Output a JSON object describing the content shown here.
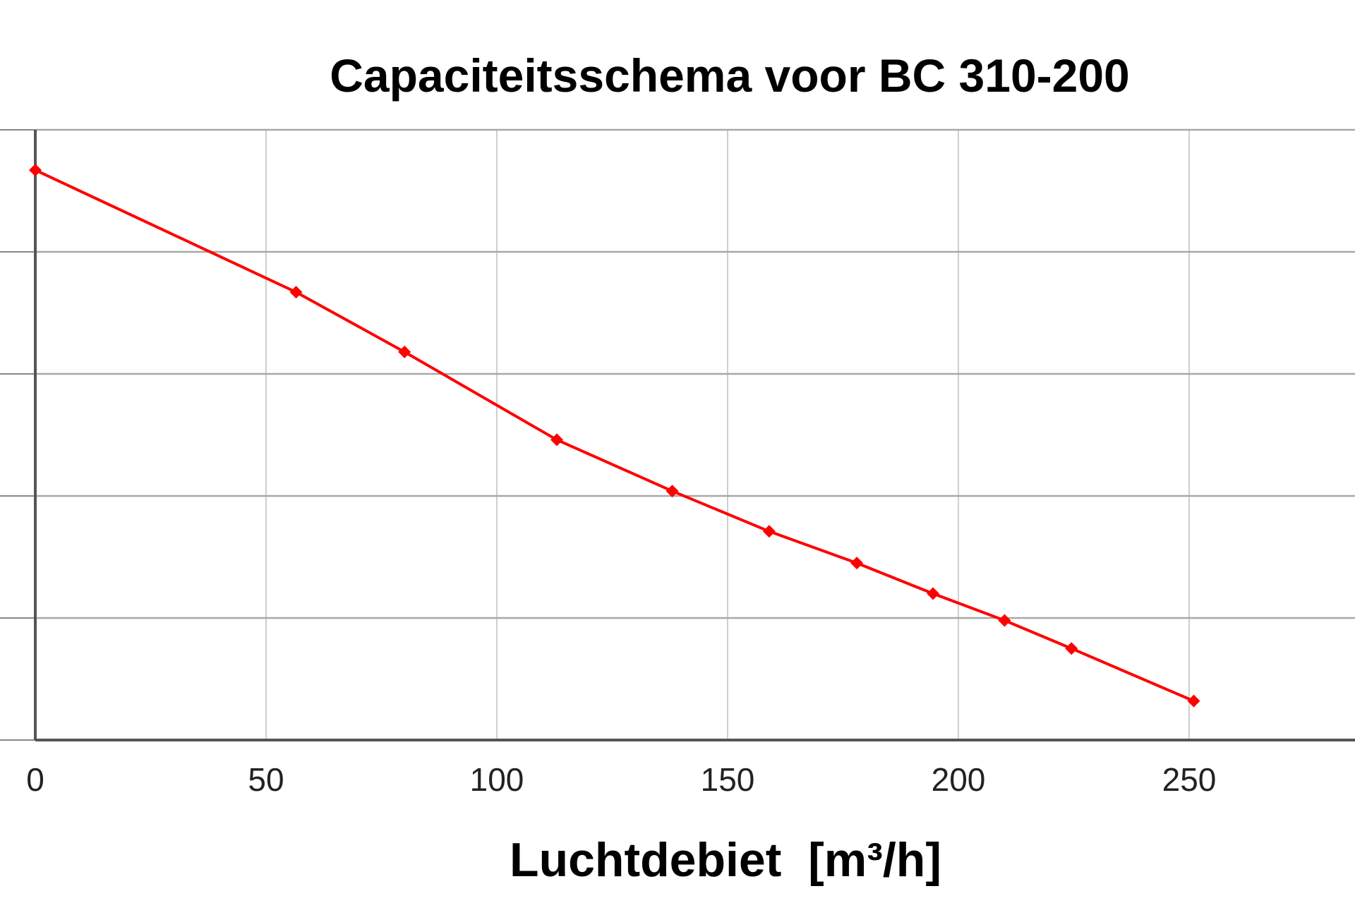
{
  "chart_data": {
    "type": "line",
    "title": "Capaciteitsschema voor BC 310-200",
    "xlabel": "Luchtdebiet  [m³/h]",
    "ylabel": "",
    "xlim": [
      0,
      297
    ],
    "ylim": [
      0,
      5
    ],
    "x_ticks": [
      0,
      50,
      100,
      150,
      200,
      250
    ],
    "x_tick_labels": [
      "0",
      "50",
      "100",
      "150",
      "200",
      "250"
    ],
    "y_ticks": [
      0,
      1,
      2,
      3,
      4,
      5
    ],
    "grid": true,
    "series": [
      {
        "color": "#ff0000",
        "x": [
          0,
          56.5,
          80,
          113,
          138,
          159,
          178,
          194.5,
          210,
          224.5,
          251
        ],
        "y": [
          4.67,
          3.67,
          3.18,
          2.46,
          2.04,
          1.71,
          1.45,
          1.2,
          0.98,
          0.75,
          0.32
        ]
      }
    ]
  }
}
